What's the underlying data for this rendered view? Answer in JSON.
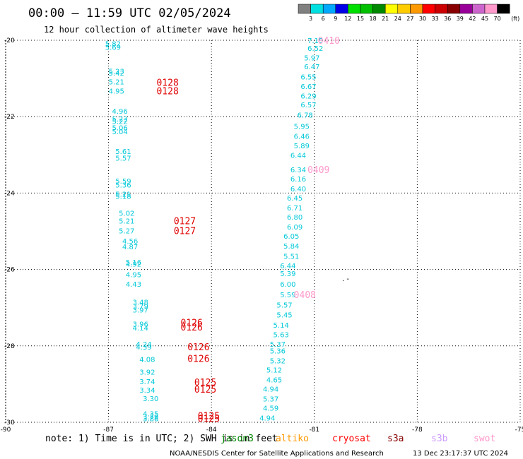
{
  "header": {
    "title": "00:00 – 11:59 UTC 02/05/2024",
    "subtitle": "12 hour collection of altimeter wave heights"
  },
  "legend": {
    "unit": "(ft)",
    "colors": [
      "#808080",
      "#00e0e0",
      "#00a8ff",
      "#0000e8",
      "#00e000",
      "#00c000",
      "#008800",
      "#ffff00",
      "#ffcc00",
      "#ff9900",
      "#ff0000",
      "#cc0000",
      "#880000",
      "#990099",
      "#cc66cc",
      "#ff99cc",
      "#000000"
    ],
    "labels": [
      "3",
      "6",
      "9",
      "12",
      "15",
      "18",
      "21",
      "24",
      "27",
      "30",
      "33",
      "36",
      "39",
      "42",
      "45",
      "70"
    ]
  },
  "chart_data": {
    "type": "scatter",
    "title": "00:00 – 11:59 UTC 02/05/2024",
    "xlim": [
      -90,
      -75
    ],
    "ylim": [
      -30,
      -20
    ],
    "x_ticks": [
      "-90",
      "-87",
      "-84",
      "-81",
      "-78",
      "-75"
    ],
    "y_ticks": [
      "-20",
      "-22",
      "-24",
      "-26",
      "-28",
      "-30"
    ],
    "wave_heights": [
      {
        "x": -87.1,
        "y": -20.08,
        "label": "5.82"
      },
      {
        "x": -87.1,
        "y": -20.18,
        "label": "5.69"
      },
      {
        "x": -87.0,
        "y": -20.8,
        "label": "5.23"
      },
      {
        "x": -87.0,
        "y": -20.85,
        "label": "5.42"
      },
      {
        "x": -87.0,
        "y": -21.08,
        "label": "5.21"
      },
      {
        "x": -87.0,
        "y": -21.32,
        "label": "4.95"
      },
      {
        "x": -86.9,
        "y": -21.85,
        "label": "4.96"
      },
      {
        "x": -86.9,
        "y": -22.05,
        "label": "5.23"
      },
      {
        "x": -86.9,
        "y": -22.12,
        "label": "5.22"
      },
      {
        "x": -86.9,
        "y": -22.28,
        "label": "5.06"
      },
      {
        "x": -86.9,
        "y": -22.38,
        "label": "5.04"
      },
      {
        "x": -86.8,
        "y": -22.9,
        "label": "5.61"
      },
      {
        "x": -86.8,
        "y": -23.08,
        "label": "5.57"
      },
      {
        "x": -86.8,
        "y": -23.68,
        "label": "5.59"
      },
      {
        "x": -86.8,
        "y": -23.78,
        "label": "5.36"
      },
      {
        "x": -86.8,
        "y": -24.02,
        "label": "5.21"
      },
      {
        "x": -86.8,
        "y": -24.08,
        "label": "5.18"
      },
      {
        "x": -86.7,
        "y": -24.52,
        "label": "5.02"
      },
      {
        "x": -86.7,
        "y": -24.72,
        "label": "5.21"
      },
      {
        "x": -86.7,
        "y": -24.98,
        "label": "5.27"
      },
      {
        "x": -86.6,
        "y": -25.25,
        "label": "4.56"
      },
      {
        "x": -86.6,
        "y": -25.4,
        "label": "4.87"
      },
      {
        "x": -86.5,
        "y": -25.8,
        "label": "5.16"
      },
      {
        "x": -86.5,
        "y": -25.85,
        "label": "4.92"
      },
      {
        "x": -86.5,
        "y": -26.13,
        "label": "4.95"
      },
      {
        "x": -86.5,
        "y": -26.38,
        "label": "4.43"
      },
      {
        "x": -86.3,
        "y": -26.85,
        "label": "3.48"
      },
      {
        "x": -86.3,
        "y": -26.95,
        "label": "3.79"
      },
      {
        "x": -86.3,
        "y": -27.05,
        "label": "3.97"
      },
      {
        "x": -86.3,
        "y": -27.42,
        "label": "3.96"
      },
      {
        "x": -86.3,
        "y": -27.52,
        "label": "4.14"
      },
      {
        "x": -86.2,
        "y": -27.95,
        "label": "4.24"
      },
      {
        "x": -86.2,
        "y": -28.02,
        "label": "4.39"
      },
      {
        "x": -86.1,
        "y": -28.35,
        "label": "4.08"
      },
      {
        "x": -86.1,
        "y": -28.68,
        "label": "3.92"
      },
      {
        "x": -86.1,
        "y": -28.93,
        "label": "3.74"
      },
      {
        "x": -86.1,
        "y": -29.15,
        "label": "3.34"
      },
      {
        "x": -86.0,
        "y": -29.37,
        "label": "3.30"
      },
      {
        "x": -86.0,
        "y": -29.77,
        "label": "4.35"
      },
      {
        "x": -86.0,
        "y": -29.85,
        "label": "3.79"
      },
      {
        "x": -86.0,
        "y": -29.9,
        "label": "3.86"
      },
      {
        "x": -81.2,
        "y": -20.0,
        "label": "7.15"
      },
      {
        "x": -81.2,
        "y": -20.2,
        "label": "6.52"
      },
      {
        "x": -81.3,
        "y": -20.45,
        "label": "5.97"
      },
      {
        "x": -81.3,
        "y": -20.68,
        "label": "6.47"
      },
      {
        "x": -81.4,
        "y": -20.95,
        "label": "6.55"
      },
      {
        "x": -81.4,
        "y": -21.2,
        "label": "6.67"
      },
      {
        "x": -81.4,
        "y": -21.45,
        "label": "6.29"
      },
      {
        "x": -81.4,
        "y": -21.68,
        "label": "6.57"
      },
      {
        "x": -81.5,
        "y": -21.95,
        "label": "6.78"
      },
      {
        "x": -81.6,
        "y": -22.25,
        "label": "5.95"
      },
      {
        "x": -81.6,
        "y": -22.5,
        "label": "6.46"
      },
      {
        "x": -81.6,
        "y": -22.75,
        "label": "5.89"
      },
      {
        "x": -81.7,
        "y": -23.0,
        "label": "6.44"
      },
      {
        "x": -81.7,
        "y": -23.38,
        "label": "6.34"
      },
      {
        "x": -81.7,
        "y": -23.62,
        "label": "6.16"
      },
      {
        "x": -81.7,
        "y": -23.88,
        "label": "6.40"
      },
      {
        "x": -81.8,
        "y": -24.12,
        "label": "6.45"
      },
      {
        "x": -81.8,
        "y": -24.38,
        "label": "6.71"
      },
      {
        "x": -81.8,
        "y": -24.62,
        "label": "6.80"
      },
      {
        "x": -81.8,
        "y": -24.88,
        "label": "6.09"
      },
      {
        "x": -81.9,
        "y": -25.12,
        "label": "6.05"
      },
      {
        "x": -81.9,
        "y": -25.38,
        "label": "5.84"
      },
      {
        "x": -81.9,
        "y": -25.65,
        "label": "5.51"
      },
      {
        "x": -82.0,
        "y": -25.9,
        "label": "6.44"
      },
      {
        "x": -82.0,
        "y": -26.1,
        "label": "5.39"
      },
      {
        "x": -82.0,
        "y": -26.38,
        "label": "6.00"
      },
      {
        "x": -82.0,
        "y": -26.65,
        "label": "5.59"
      },
      {
        "x": -82.1,
        "y": -26.92,
        "label": "5.57"
      },
      {
        "x": -82.1,
        "y": -27.18,
        "label": "5.45"
      },
      {
        "x": -82.2,
        "y": -27.45,
        "label": "5.14"
      },
      {
        "x": -82.2,
        "y": -27.7,
        "label": "5.63"
      },
      {
        "x": -82.3,
        "y": -27.95,
        "label": "5.37"
      },
      {
        "x": -82.3,
        "y": -28.12,
        "label": "5.36"
      },
      {
        "x": -82.3,
        "y": -28.38,
        "label": "5.32"
      },
      {
        "x": -82.4,
        "y": -28.62,
        "label": "5.12"
      },
      {
        "x": -82.4,
        "y": -28.88,
        "label": "4.65"
      },
      {
        "x": -82.5,
        "y": -29.12,
        "label": "4.94"
      },
      {
        "x": -82.5,
        "y": -29.38,
        "label": "5.37"
      },
      {
        "x": -82.5,
        "y": -29.62,
        "label": "4.59"
      },
      {
        "x": -82.6,
        "y": -29.88,
        "label": "4.94"
      }
    ],
    "pass_labels": [
      {
        "x": -85.6,
        "y": -21.1,
        "label": "0128",
        "color": "#e00000"
      },
      {
        "x": -85.6,
        "y": -21.32,
        "label": "0128",
        "color": "#e00000"
      },
      {
        "x": -85.1,
        "y": -24.72,
        "label": "0127",
        "color": "#e00000"
      },
      {
        "x": -85.1,
        "y": -24.98,
        "label": "0127",
        "color": "#e00000"
      },
      {
        "x": -84.9,
        "y": -27.38,
        "label": "0126",
        "color": "#e00000"
      },
      {
        "x": -84.9,
        "y": -27.5,
        "label": "0126",
        "color": "#e00000"
      },
      {
        "x": -84.7,
        "y": -28.02,
        "label": "0126",
        "color": "#e00000"
      },
      {
        "x": -84.7,
        "y": -28.33,
        "label": "0126",
        "color": "#e00000"
      },
      {
        "x": -84.5,
        "y": -28.95,
        "label": "0125",
        "color": "#e00000"
      },
      {
        "x": -84.5,
        "y": -29.13,
        "label": "0125",
        "color": "#e00000"
      },
      {
        "x": -84.4,
        "y": -29.82,
        "label": "0125",
        "color": "#e00000"
      },
      {
        "x": -84.4,
        "y": -29.9,
        "label": "0125",
        "color": "#e00000"
      },
      {
        "x": -80.9,
        "y": -20.0,
        "label": "0410",
        "color": "#ff99cc"
      },
      {
        "x": -81.2,
        "y": -23.38,
        "label": "0409",
        "color": "#ff99cc"
      },
      {
        "x": -81.6,
        "y": -26.65,
        "label": "0408",
        "color": "#ff99cc"
      }
    ]
  },
  "footer": {
    "note": "note: 1) Time is in UTC; 2) SWH is in feet",
    "satellites": [
      {
        "name": "jason3",
        "color": "#008800"
      },
      {
        "name": "altiko",
        "color": "#ff9900"
      },
      {
        "name": "cryosat",
        "color": "#ff0000"
      },
      {
        "name": "s3a",
        "color": "#880000"
      },
      {
        "name": "s3b",
        "color": "#cc99ff"
      },
      {
        "name": "swot",
        "color": "#ff99cc"
      }
    ],
    "credit": "NOAA/NESDIS Center for Satellite Applications and Research",
    "timestamp": "13 Dec 23:17:37 UTC 2024"
  },
  "colors": {
    "value_text": "#00c8d8",
    "grid": "#000000"
  }
}
